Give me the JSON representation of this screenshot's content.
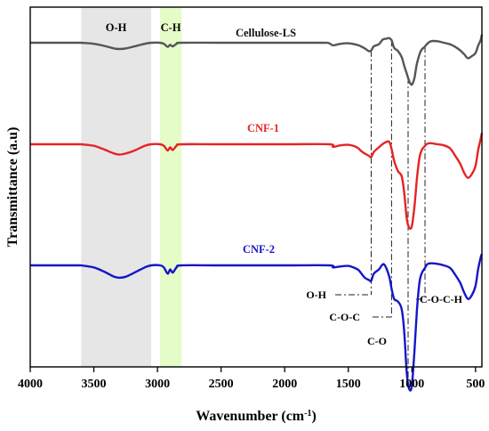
{
  "chart_data": {
    "type": "line",
    "xlabel": "Wavenumber (cm",
    "xlabel_sup": "-1",
    "xlabel_tail": ")",
    "ylabel": "Transmittance (a.u)",
    "xlim": [
      4000,
      450
    ],
    "x_reversed": true,
    "y_ticks": false,
    "grid": false,
    "x_ticks": [
      {
        "value": 4000,
        "label": "4000"
      },
      {
        "value": 3500,
        "label": "3500"
      },
      {
        "value": 3000,
        "label": "3000"
      },
      {
        "value": 2500,
        "label": "2500"
      },
      {
        "value": 2000,
        "label": "2000"
      },
      {
        "value": 1500,
        "label": "1500"
      },
      {
        "value": 1000,
        "label": "1000"
      },
      {
        "value": 500,
        "label": "500"
      }
    ],
    "bands": [
      {
        "label": "O-H",
        "from": 3600,
        "to": 3050,
        "color": "#e6e6e6"
      },
      {
        "label": "C-H",
        "from": 2980,
        "to": 2810,
        "color": "#e6fcc8"
      }
    ],
    "series": [
      {
        "name": "Cellulose-LS",
        "color": "#555555",
        "x": [
          3600,
          3500,
          3420,
          3340,
          3300,
          3250,
          3180,
          3100,
          3050,
          2980,
          2950,
          2920,
          2900,
          2880,
          2850,
          2810,
          2500,
          2000,
          1700,
          1650,
          1620,
          1560,
          1500,
          1450,
          1420,
          1400,
          1370,
          1340,
          1320,
          1300,
          1260,
          1230,
          1200,
          1180,
          1160,
          1140,
          1110,
          1080,
          1060,
          1040,
          1020,
          1000,
          980,
          960,
          930,
          900,
          880,
          850,
          800,
          750,
          700,
          660,
          620,
          590,
          560,
          530,
          500,
          480,
          460,
          450
        ],
        "values": [
          0.0,
          -0.2,
          -0.6,
          -1.1,
          -1.2,
          -1.1,
          -0.7,
          -0.2,
          0.0,
          0.0,
          -0.2,
          -0.8,
          -0.4,
          -0.7,
          -0.2,
          0.0,
          0.0,
          0.0,
          0.0,
          -0.1,
          -0.5,
          -0.2,
          -0.1,
          -0.3,
          -0.5,
          -0.7,
          -1.1,
          -1.6,
          -1.5,
          -0.7,
          -0.3,
          0.6,
          0.8,
          0.9,
          0.5,
          -1.0,
          -1.6,
          -2.8,
          -4.5,
          -6.0,
          -7.5,
          -8.1,
          -6.8,
          -4.0,
          -1.6,
          -0.8,
          -0.2,
          0.3,
          0.3,
          0.0,
          -0.3,
          -0.8,
          -1.5,
          -2.2,
          -3.0,
          -2.6,
          -2.0,
          -0.6,
          0.5,
          1.6
        ]
      },
      {
        "name": "CNF-1",
        "color": "#e52424",
        "x": [
          3600,
          3500,
          3420,
          3340,
          3300,
          3250,
          3180,
          3100,
          3050,
          2980,
          2950,
          2920,
          2900,
          2880,
          2850,
          2810,
          2500,
          2000,
          1650,
          1620,
          1560,
          1500,
          1450,
          1420,
          1400,
          1370,
          1340,
          1320,
          1300,
          1260,
          1220,
          1180,
          1160,
          1140,
          1110,
          1080,
          1060,
          1040,
          1020,
          1000,
          980,
          960,
          940,
          920,
          900,
          880,
          850,
          800,
          750,
          700,
          660,
          620,
          590,
          560,
          530,
          500,
          480,
          460,
          450
        ],
        "values": [
          0.0,
          -0.3,
          -1.0,
          -1.8,
          -2.0,
          -1.8,
          -1.2,
          -0.3,
          0.0,
          0.0,
          -0.3,
          -1.2,
          -0.6,
          -1.1,
          -0.3,
          0.0,
          0.0,
          0.0,
          0.0,
          -0.5,
          -0.2,
          -0.1,
          -0.4,
          -0.8,
          -1.3,
          -1.8,
          -2.2,
          -2.5,
          -1.5,
          -0.6,
          0.2,
          0.5,
          -0.9,
          -3.2,
          -5.2,
          -6.2,
          -9.5,
          -14.5,
          -16.2,
          -15.8,
          -12.0,
          -6.5,
          -2.5,
          -1.0,
          -0.4,
          0.1,
          0.2,
          0.0,
          -0.2,
          -0.8,
          -2.2,
          -3.8,
          -5.5,
          -6.5,
          -5.8,
          -4.2,
          -1.2,
          1.0,
          2.2
        ]
      },
      {
        "name": "CNF-2",
        "color": "#1616c8",
        "x": [
          3600,
          3500,
          3420,
          3340,
          3300,
          3250,
          3180,
          3100,
          3050,
          2980,
          2950,
          2920,
          2900,
          2880,
          2850,
          2810,
          2500,
          2000,
          1650,
          1620,
          1560,
          1500,
          1450,
          1420,
          1400,
          1370,
          1340,
          1320,
          1300,
          1260,
          1220,
          1180,
          1160,
          1140,
          1110,
          1080,
          1060,
          1040,
          1020,
          1000,
          980,
          960,
          940,
          920,
          900,
          880,
          850,
          800,
          750,
          700,
          660,
          620,
          590,
          560,
          530,
          500,
          480,
          460,
          450
        ],
        "values": [
          0.0,
          -0.4,
          -1.2,
          -2.2,
          -2.4,
          -2.2,
          -1.4,
          -0.4,
          0.0,
          0.0,
          -0.4,
          -1.6,
          -0.8,
          -1.4,
          -0.4,
          0.0,
          0.0,
          0.0,
          0.0,
          -0.4,
          -0.2,
          -0.1,
          -0.5,
          -0.9,
          -1.5,
          -2.4,
          -2.8,
          -3.0,
          -1.6,
          -0.8,
          0.2,
          -2.0,
          -4.5,
          -6.5,
          -7.0,
          -8.5,
          -13.0,
          -21.0,
          -24.0,
          -23.2,
          -16.5,
          -8.5,
          -3.2,
          -1.4,
          -0.6,
          0.2,
          0.4,
          0.3,
          0.0,
          -0.5,
          -1.8,
          -3.4,
          -5.2,
          -6.5,
          -5.8,
          -4.0,
          -0.8,
          1.5,
          2.2
        ]
      }
    ],
    "peak_markers": [
      {
        "label": "O-H",
        "x": 1320
      },
      {
        "label": "C-O-C",
        "x": 1160
      },
      {
        "label": "C-O",
        "x": 1030
      },
      {
        "label": "C-O-C-H",
        "x": 897
      }
    ]
  }
}
